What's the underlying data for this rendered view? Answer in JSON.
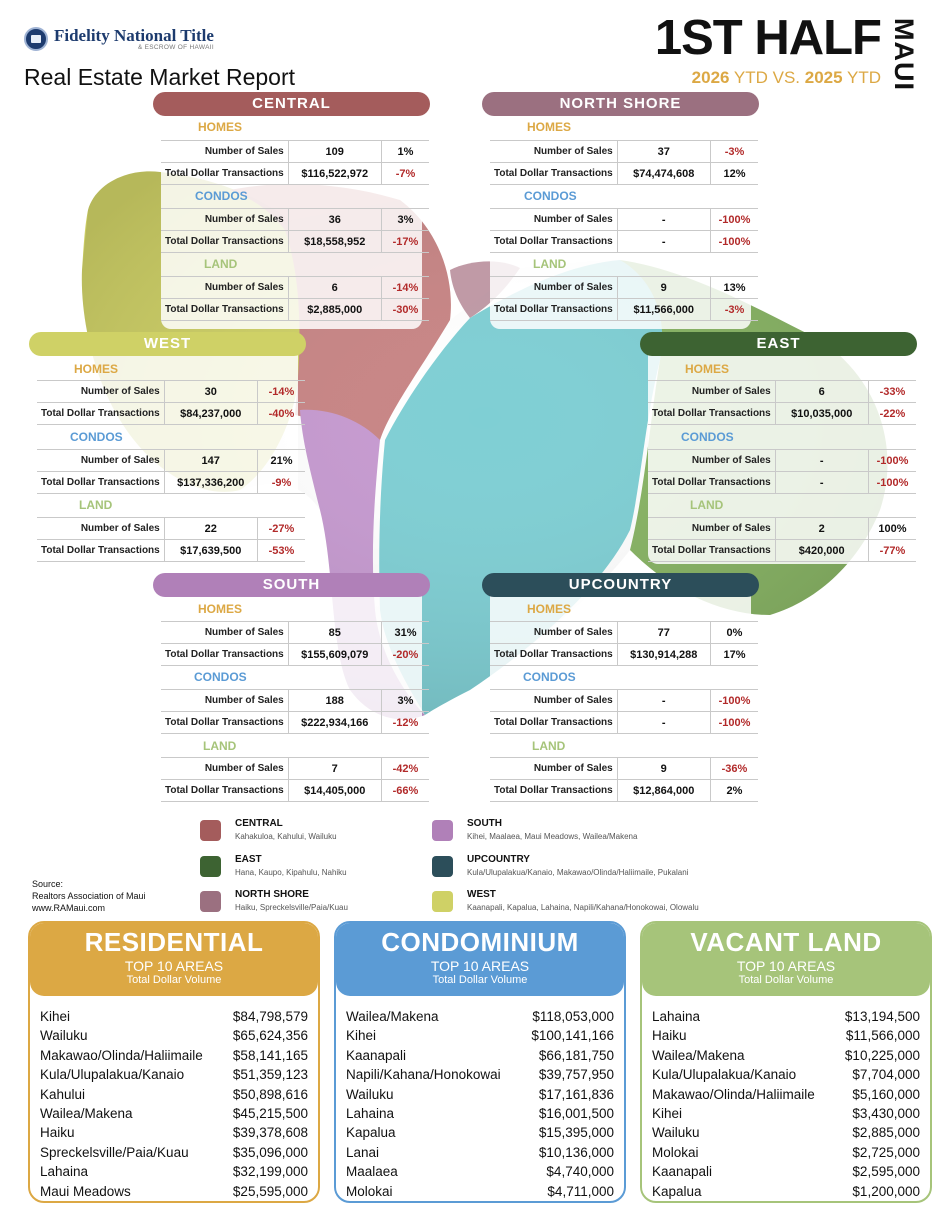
{
  "header": {
    "logo_name": "Fidelity National Title",
    "logo_sub": "& ESCROW OF HAWAII",
    "report_title": "Real Estate Market Report",
    "half_title": "1ST HALF",
    "island": "MAUI",
    "ytd_year_current": "2026",
    "ytd_mid": " YTD VS. ",
    "ytd_year_prior": "2025",
    "ytd_end": " YTD"
  },
  "labels": {
    "homes": "HOMES",
    "condos": "CONDOS",
    "land": "LAND",
    "sales": "Number of Sales",
    "dollars": "Total Dollar Transactions"
  },
  "regions": {
    "central": {
      "name": "CENTRAL",
      "color": "#a45c5c",
      "homes": {
        "sales": "109",
        "sales_chg": "1%",
        "dollars": "$116,522,972",
        "dollars_chg": "-7%"
      },
      "condos": {
        "sales": "36",
        "sales_chg": "3%",
        "dollars": "$18,558,952",
        "dollars_chg": "-17%"
      },
      "land": {
        "sales": "6",
        "sales_chg": "-14%",
        "dollars": "$2,885,000",
        "dollars_chg": "-30%"
      }
    },
    "north_shore": {
      "name": "NORTH SHORE",
      "color": "#9b7080",
      "homes": {
        "sales": "37",
        "sales_chg": "-3%",
        "dollars": "$74,474,608",
        "dollars_chg": "12%"
      },
      "condos": {
        "sales": "-",
        "sales_chg": "-100%",
        "dollars": "-",
        "dollars_chg": "-100%"
      },
      "land": {
        "sales": "9",
        "sales_chg": "13%",
        "dollars": "$11,566,000",
        "dollars_chg": "-3%"
      }
    },
    "west": {
      "name": "WEST",
      "color": "#cfd166",
      "homes": {
        "sales": "30",
        "sales_chg": "-14%",
        "dollars": "$84,237,000",
        "dollars_chg": "-40%"
      },
      "condos": {
        "sales": "147",
        "sales_chg": "21%",
        "dollars": "$137,336,200",
        "dollars_chg": "-9%"
      },
      "land": {
        "sales": "22",
        "sales_chg": "-27%",
        "dollars": "$17,639,500",
        "dollars_chg": "-53%"
      }
    },
    "east": {
      "name": "EAST",
      "color": "#3d6332",
      "homes": {
        "sales": "6",
        "sales_chg": "-33%",
        "dollars": "$10,035,000",
        "dollars_chg": "-22%"
      },
      "condos": {
        "sales": "-",
        "sales_chg": "-100%",
        "dollars": "-",
        "dollars_chg": "-100%"
      },
      "land": {
        "sales": "2",
        "sales_chg": "100%",
        "dollars": "$420,000",
        "dollars_chg": "-77%"
      }
    },
    "south": {
      "name": "SOUTH",
      "color": "#b080b8",
      "homes": {
        "sales": "85",
        "sales_chg": "31%",
        "dollars": "$155,609,079",
        "dollars_chg": "-20%"
      },
      "condos": {
        "sales": "188",
        "sales_chg": "3%",
        "dollars": "$222,934,166",
        "dollars_chg": "-12%"
      },
      "land": {
        "sales": "7",
        "sales_chg": "-42%",
        "dollars": "$14,405,000",
        "dollars_chg": "-66%"
      }
    },
    "upcountry": {
      "name": "UPCOUNTRY",
      "color": "#2c4e5a",
      "homes": {
        "sales": "77",
        "sales_chg": "0%",
        "dollars": "$130,914,288",
        "dollars_chg": "17%"
      },
      "condos": {
        "sales": "-",
        "sales_chg": "-100%",
        "dollars": "-",
        "dollars_chg": "-100%"
      },
      "land": {
        "sales": "9",
        "sales_chg": "-36%",
        "dollars": "$12,864,000",
        "dollars_chg": "2%"
      }
    }
  },
  "legend": [
    {
      "name": "CENTRAL",
      "areas": "Kahakuloa, Kahului, Wailuku",
      "color": "#a45c5c"
    },
    {
      "name": "EAST",
      "areas": "Hana, Kaupo, Kipahulu, Nahiku",
      "color": "#3d6332"
    },
    {
      "name": "NORTH SHORE",
      "areas": "Haiku, Spreckelsville/Paia/Kuau",
      "color": "#9b7080"
    },
    {
      "name": "SOUTH",
      "areas": "Kihei, Maalaea, Maui Meadows, Wailea/Makena",
      "color": "#b080b8"
    },
    {
      "name": "UPCOUNTRY",
      "areas": "Kula/Ulupalakua/Kanaio, Makawao/Olinda/Haliimaile, Pukalani",
      "color": "#2c4e5a"
    },
    {
      "name": "WEST",
      "areas": "Kaanapali, Kapalua, Lahaina, Napili/Kahana/Honokowai, Olowalu",
      "color": "#cfd166"
    }
  ],
  "source": {
    "label": "Source:",
    "org": "Realtors Association of Maui",
    "url": "www.RAMaui.com"
  },
  "top10": {
    "subtitle": "TOP 10 AREAS",
    "subtitle2": "Total Dollar Volume",
    "residential": {
      "title": "RESIDENTIAL",
      "color": "#dca844",
      "rows": [
        {
          "area": "Kihei",
          "value": "$84,798,579"
        },
        {
          "area": "Wailuku",
          "value": "$65,624,356"
        },
        {
          "area": "Makawao/Olinda/Haliimaile",
          "value": "$58,141,165"
        },
        {
          "area": "Kula/Ulupalakua/Kanaio",
          "value": "$51,359,123"
        },
        {
          "area": "Kahului",
          "value": "$50,898,616"
        },
        {
          "area": "Wailea/Makena",
          "value": "$45,215,500"
        },
        {
          "area": "Haiku",
          "value": "$39,378,608"
        },
        {
          "area": "Spreckelsville/Paia/Kuau",
          "value": "$35,096,000"
        },
        {
          "area": "Lahaina",
          "value": "$32,199,000"
        },
        {
          "area": "Maui Meadows",
          "value": "$25,595,000"
        }
      ]
    },
    "condominium": {
      "title": "CONDOMINIUM",
      "color": "#5b9bd5",
      "rows": [
        {
          "area": "Wailea/Makena",
          "value": "$118,053,000"
        },
        {
          "area": "Kihei",
          "value": "$100,141,166"
        },
        {
          "area": "Kaanapali",
          "value": "$66,181,750"
        },
        {
          "area": "Napili/Kahana/Honokowai",
          "value": "$39,757,950"
        },
        {
          "area": "Wailuku",
          "value": "$17,161,836"
        },
        {
          "area": "Lahaina",
          "value": "$16,001,500"
        },
        {
          "area": "Kapalua",
          "value": "$15,395,000"
        },
        {
          "area": "Lanai",
          "value": "$10,136,000"
        },
        {
          "area": "Maalaea",
          "value": "$4,740,000"
        },
        {
          "area": "Molokai",
          "value": "$4,711,000"
        }
      ]
    },
    "vacant_land": {
      "title": "VACANT LAND",
      "color": "#a6c47a",
      "rows": [
        {
          "area": "Lahaina",
          "value": "$13,194,500"
        },
        {
          "area": "Haiku",
          "value": "$11,566,000"
        },
        {
          "area": "Wailea/Makena",
          "value": "$10,225,000"
        },
        {
          "area": "Kula/Ulupalakua/Kanaio",
          "value": "$7,704,000"
        },
        {
          "area": "Makawao/Olinda/Haliimaile",
          "value": "$5,160,000"
        },
        {
          "area": "Kihei",
          "value": "$3,430,000"
        },
        {
          "area": "Wailuku",
          "value": "$2,885,000"
        },
        {
          "area": "Molokai",
          "value": "$2,725,000"
        },
        {
          "area": "Kaanapali",
          "value": "$2,595,000"
        },
        {
          "area": "Kapalua",
          "value": "$1,200,000"
        }
      ]
    }
  }
}
